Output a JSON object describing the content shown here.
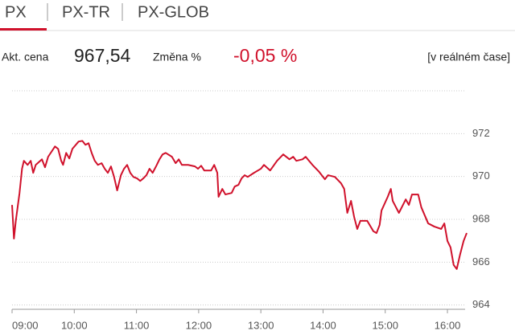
{
  "tabs": [
    "PX",
    "PX-TR",
    "PX-GLOB"
  ],
  "info": {
    "price_label": "Akt. cena",
    "price": "967,54",
    "change_label": "Změna %",
    "change": "-0,05 %",
    "mode": "[v reálném čase]"
  },
  "chart_data": {
    "type": "line",
    "x": [
      9.0,
      9.03,
      9.06,
      9.12,
      9.16,
      9.19,
      9.25,
      9.3,
      9.34,
      9.38,
      9.48,
      9.53,
      9.58,
      9.69,
      9.74,
      9.79,
      9.82,
      9.87,
      9.92,
      9.97,
      10.07,
      10.13,
      10.18,
      10.23,
      10.28,
      10.33,
      10.38,
      10.44,
      10.49,
      10.54,
      10.59,
      10.64,
      10.69,
      10.75,
      10.8,
      10.85,
      10.9,
      10.95,
      11.01,
      11.06,
      11.11,
      11.16,
      11.21,
      11.26,
      11.32,
      11.37,
      11.42,
      11.47,
      11.57,
      11.63,
      11.68,
      11.73,
      11.83,
      11.94,
      11.99,
      12.04,
      12.09,
      12.2,
      12.25,
      12.3,
      12.32,
      12.38,
      12.43,
      12.53,
      12.58,
      12.64,
      12.69,
      12.74,
      12.79,
      12.89,
      13.0,
      13.05,
      13.15,
      13.26,
      13.36,
      13.46,
      13.52,
      13.57,
      13.67,
      13.72,
      13.83,
      13.93,
      14.03,
      14.08,
      14.19,
      14.29,
      14.34,
      14.39,
      14.45,
      14.5,
      14.55,
      14.6,
      14.71,
      14.81,
      14.86,
      14.91,
      14.94,
      15.04,
      15.09,
      15.12,
      15.22,
      15.33,
      15.38,
      15.43,
      15.53,
      15.58,
      15.69,
      15.79,
      15.9,
      15.95,
      16.0,
      16.05,
      16.1,
      16.15,
      16.2,
      16.26,
      16.31
    ],
    "series": [
      {
        "color": "#d0112b",
        "values": [
          968.67,
          967.1,
          967.93,
          969.23,
          970.36,
          970.73,
          970.54,
          970.73,
          970.17,
          970.54,
          970.8,
          970.43,
          970.92,
          971.4,
          971.29,
          970.73,
          970.54,
          971.1,
          970.84,
          971.29,
          971.63,
          971.66,
          971.48,
          971.55,
          971.1,
          970.73,
          970.54,
          970.62,
          970.36,
          970.17,
          970.47,
          969.98,
          969.35,
          970.06,
          970.36,
          970.54,
          970.17,
          969.98,
          969.91,
          969.79,
          969.91,
          970.06,
          970.36,
          970.17,
          970.5,
          970.8,
          971.03,
          971.1,
          970.92,
          970.62,
          970.8,
          970.54,
          970.54,
          970.47,
          970.36,
          970.5,
          970.28,
          970.28,
          970.54,
          970.17,
          969.05,
          969.42,
          969.16,
          969.23,
          969.53,
          969.61,
          969.91,
          970.06,
          969.98,
          970.17,
          970.36,
          970.54,
          970.28,
          970.73,
          971.03,
          970.8,
          970.92,
          970.73,
          970.8,
          970.92,
          970.54,
          970.24,
          969.87,
          970.06,
          969.98,
          969.68,
          969.42,
          968.3,
          968.86,
          968.11,
          967.55,
          967.93,
          967.93,
          967.44,
          967.36,
          967.74,
          968.41,
          969.05,
          969.42,
          968.86,
          968.3,
          968.93,
          968.67,
          969.16,
          969.16,
          968.56,
          967.81,
          967.66,
          967.55,
          967.81,
          966.99,
          966.69,
          965.87,
          965.68,
          966.32,
          966.99,
          967.36
        ]
      }
    ],
    "xlim": [
      9,
      16.31
    ],
    "xticks": [
      {
        "value": 9,
        "label": "09:00"
      },
      {
        "value": 10,
        "label": "10:00"
      },
      {
        "value": 11,
        "label": "11:00"
      },
      {
        "value": 12,
        "label": "12:00"
      },
      {
        "value": 13,
        "label": "13:00"
      },
      {
        "value": 14,
        "label": "14:00"
      },
      {
        "value": 15,
        "label": "15:00"
      },
      {
        "value": 16,
        "label": "16:00"
      }
    ],
    "ylim": [
      963.8,
      974
    ],
    "yticks": [
      964,
      966,
      968,
      970,
      972
    ],
    "grid": true
  }
}
